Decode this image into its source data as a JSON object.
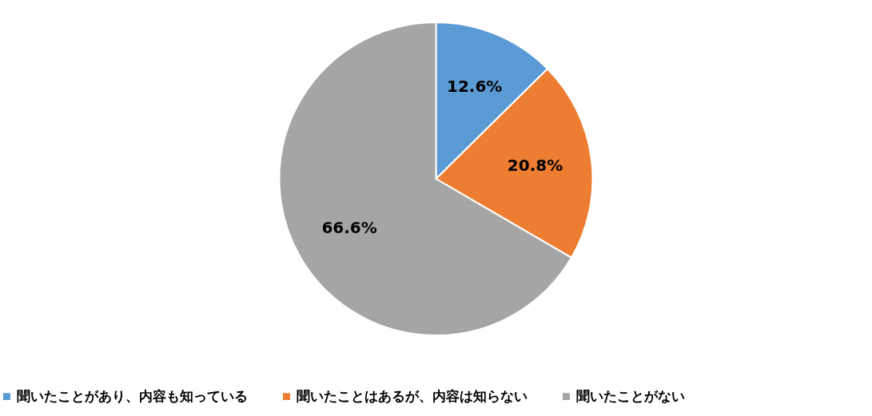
{
  "chart_data": {
    "type": "pie",
    "categories": [
      "聞いたことがあり、内容も知っている",
      "聞いたことはあるが、内容は知らない",
      "聞いたことがない"
    ],
    "values": [
      12.6,
      20.8,
      66.6
    ],
    "colors": [
      "#5b9bd5",
      "#ed7d31",
      "#a5a5a5"
    ],
    "value_labels": [
      "12.6%",
      "20.8%",
      "66.6%"
    ],
    "legend": "bottom"
  }
}
